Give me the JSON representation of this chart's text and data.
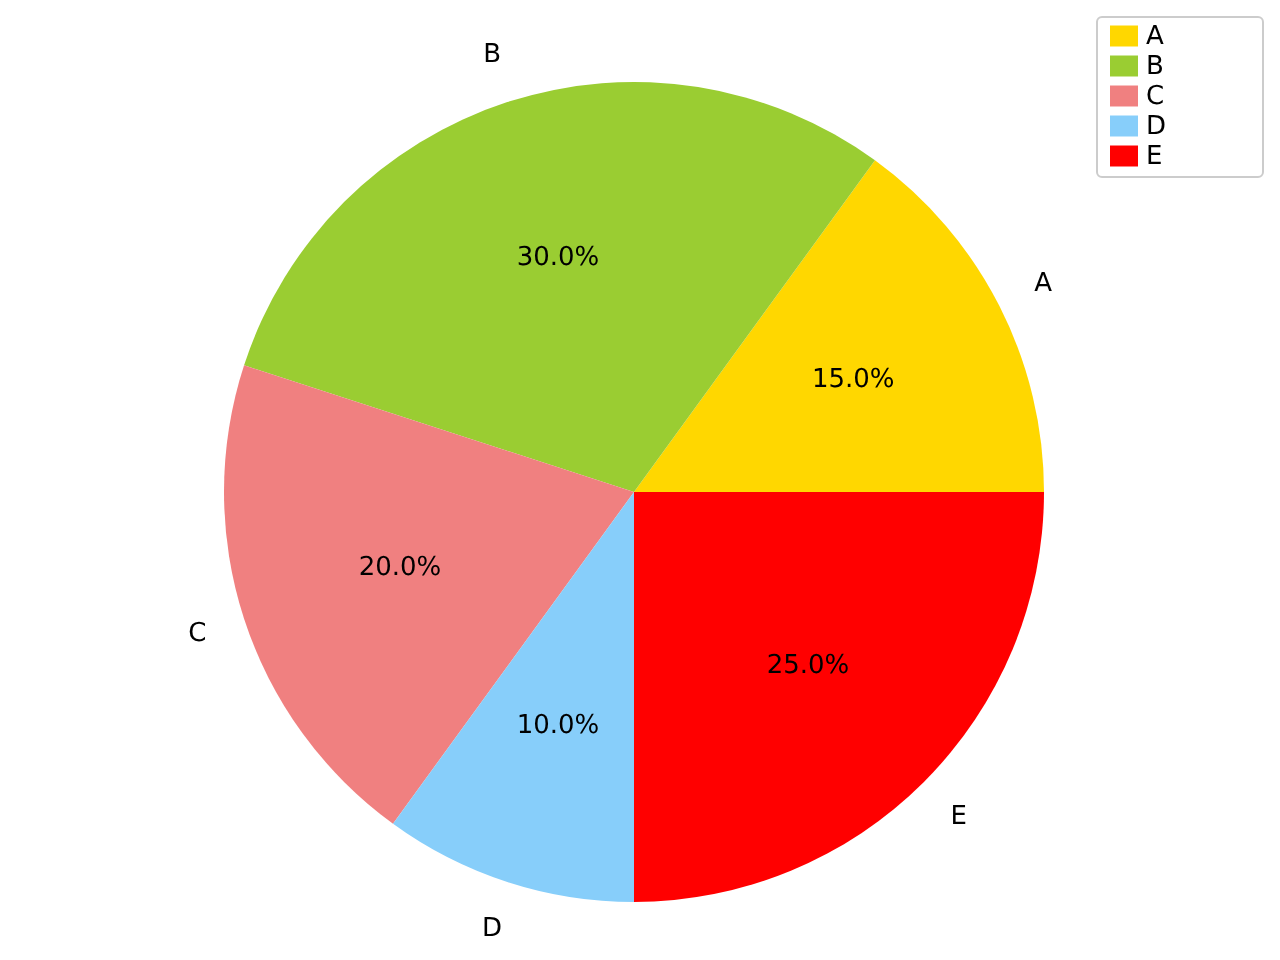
{
  "chart_data": {
    "type": "pie",
    "categories": [
      "A",
      "B",
      "C",
      "D",
      "E"
    ],
    "values": [
      15,
      30,
      20,
      10,
      25
    ],
    "colors": [
      "#ffd700",
      "#9acd32",
      "#f08080",
      "#87cefa",
      "#ff0000"
    ],
    "value_labels": [
      "15.0%",
      "30.0%",
      "20.0%",
      "10.0%",
      "25.0%"
    ],
    "legend": "top right"
  }
}
